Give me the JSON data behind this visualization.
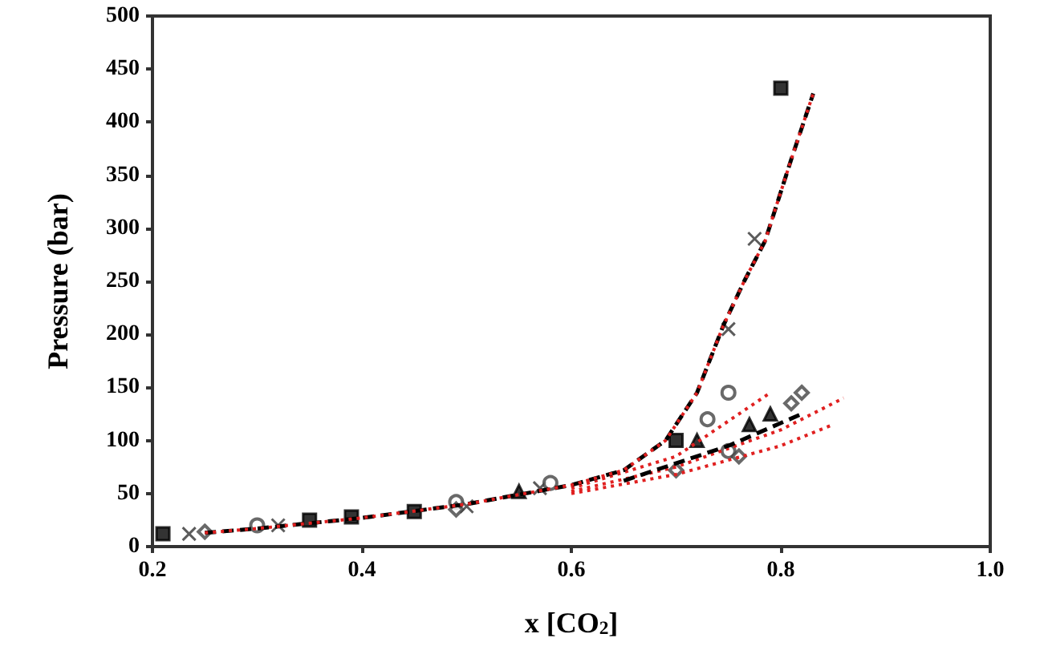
{
  "chart_data": {
    "type": "scatter",
    "xlabel": "x [CO$_{2}$]",
    "ylabel": "Pressure (bar)",
    "xlim": [
      0.2,
      1.0
    ],
    "ylim": [
      0,
      500
    ],
    "xticks": [
      0.2,
      0.4,
      0.6,
      0.8,
      {
        "value": 1.0,
        "label": "1.0"
      }
    ],
    "yticks": [
      0,
      50,
      100,
      150,
      200,
      250,
      300,
      350,
      400,
      450,
      500
    ],
    "grid": false,
    "series": [
      {
        "type": "line",
        "line_style": "dotted",
        "marker": "none",
        "color": "#e02020",
        "x": [
          0.6,
          0.7,
          0.79
        ],
        "values": [
          55,
          85,
          145
        ]
      },
      {
        "type": "line",
        "line_style": "dotted",
        "marker": "none",
        "color": "#e02020",
        "x": [
          0.6,
          0.7,
          0.8,
          0.86
        ],
        "values": [
          52,
          75,
          110,
          140
        ]
      },
      {
        "type": "line",
        "line_style": "dotted",
        "marker": "none",
        "color": "#e02020",
        "x": [
          0.6,
          0.7,
          0.8,
          0.85
        ],
        "values": [
          50,
          68,
          95,
          115
        ]
      },
      {
        "type": "line",
        "line_style": "dashed",
        "marker": "none",
        "color": "#000000",
        "x": [
          0.25,
          0.3,
          0.4,
          0.5,
          0.6,
          0.65,
          0.69,
          0.72,
          0.745,
          0.765,
          0.785,
          0.81,
          0.831
        ],
        "values": [
          13,
          17,
          27,
          40,
          58,
          72,
          100,
          145,
          208,
          250,
          288,
          365,
          427
        ]
      },
      {
        "type": "line",
        "line_style": "dashed",
        "marker": "none",
        "color": "#000000",
        "x": [
          0.65,
          0.75,
          0.82
        ],
        "values": [
          62,
          95,
          125
        ]
      },
      {
        "type": "line",
        "line_style": "dotted",
        "marker": "none",
        "color": "#e02020",
        "x": [
          0.25,
          0.3,
          0.4,
          0.5,
          0.6,
          0.65,
          0.69,
          0.72,
          0.745,
          0.765,
          0.785,
          0.81,
          0.831
        ],
        "values": [
          13,
          17,
          27,
          40,
          58,
          72,
          100,
          145,
          208,
          250,
          288,
          365,
          427
        ]
      },
      {
        "marker": "square",
        "color": "#000000",
        "x": [
          0.21,
          0.35,
          0.39,
          0.45,
          0.7,
          0.8
        ],
        "values": [
          12,
          25,
          28,
          33,
          100,
          432
        ]
      },
      {
        "marker": "cross",
        "color": "#333333",
        "x": [
          0.235,
          0.32,
          0.5,
          0.57,
          0.75,
          0.775
        ],
        "values": [
          12,
          20,
          38,
          55,
          205,
          290
        ]
      },
      {
        "marker": "circle",
        "color": "#444444",
        "x": [
          0.3,
          0.49,
          0.58,
          0.73,
          0.75,
          0.75
        ],
        "values": [
          20,
          42,
          60,
          120,
          145,
          90
        ]
      },
      {
        "marker": "diamond",
        "color": "#444444",
        "x": [
          0.25,
          0.49,
          0.7,
          0.76,
          0.81,
          0.82
        ],
        "values": [
          14,
          35,
          72,
          85,
          135,
          145
        ]
      },
      {
        "marker": "triangle",
        "color": "#000000",
        "x": [
          0.55,
          0.72,
          0.77,
          0.79
        ],
        "values": [
          52,
          100,
          115,
          125
        ]
      }
    ]
  }
}
